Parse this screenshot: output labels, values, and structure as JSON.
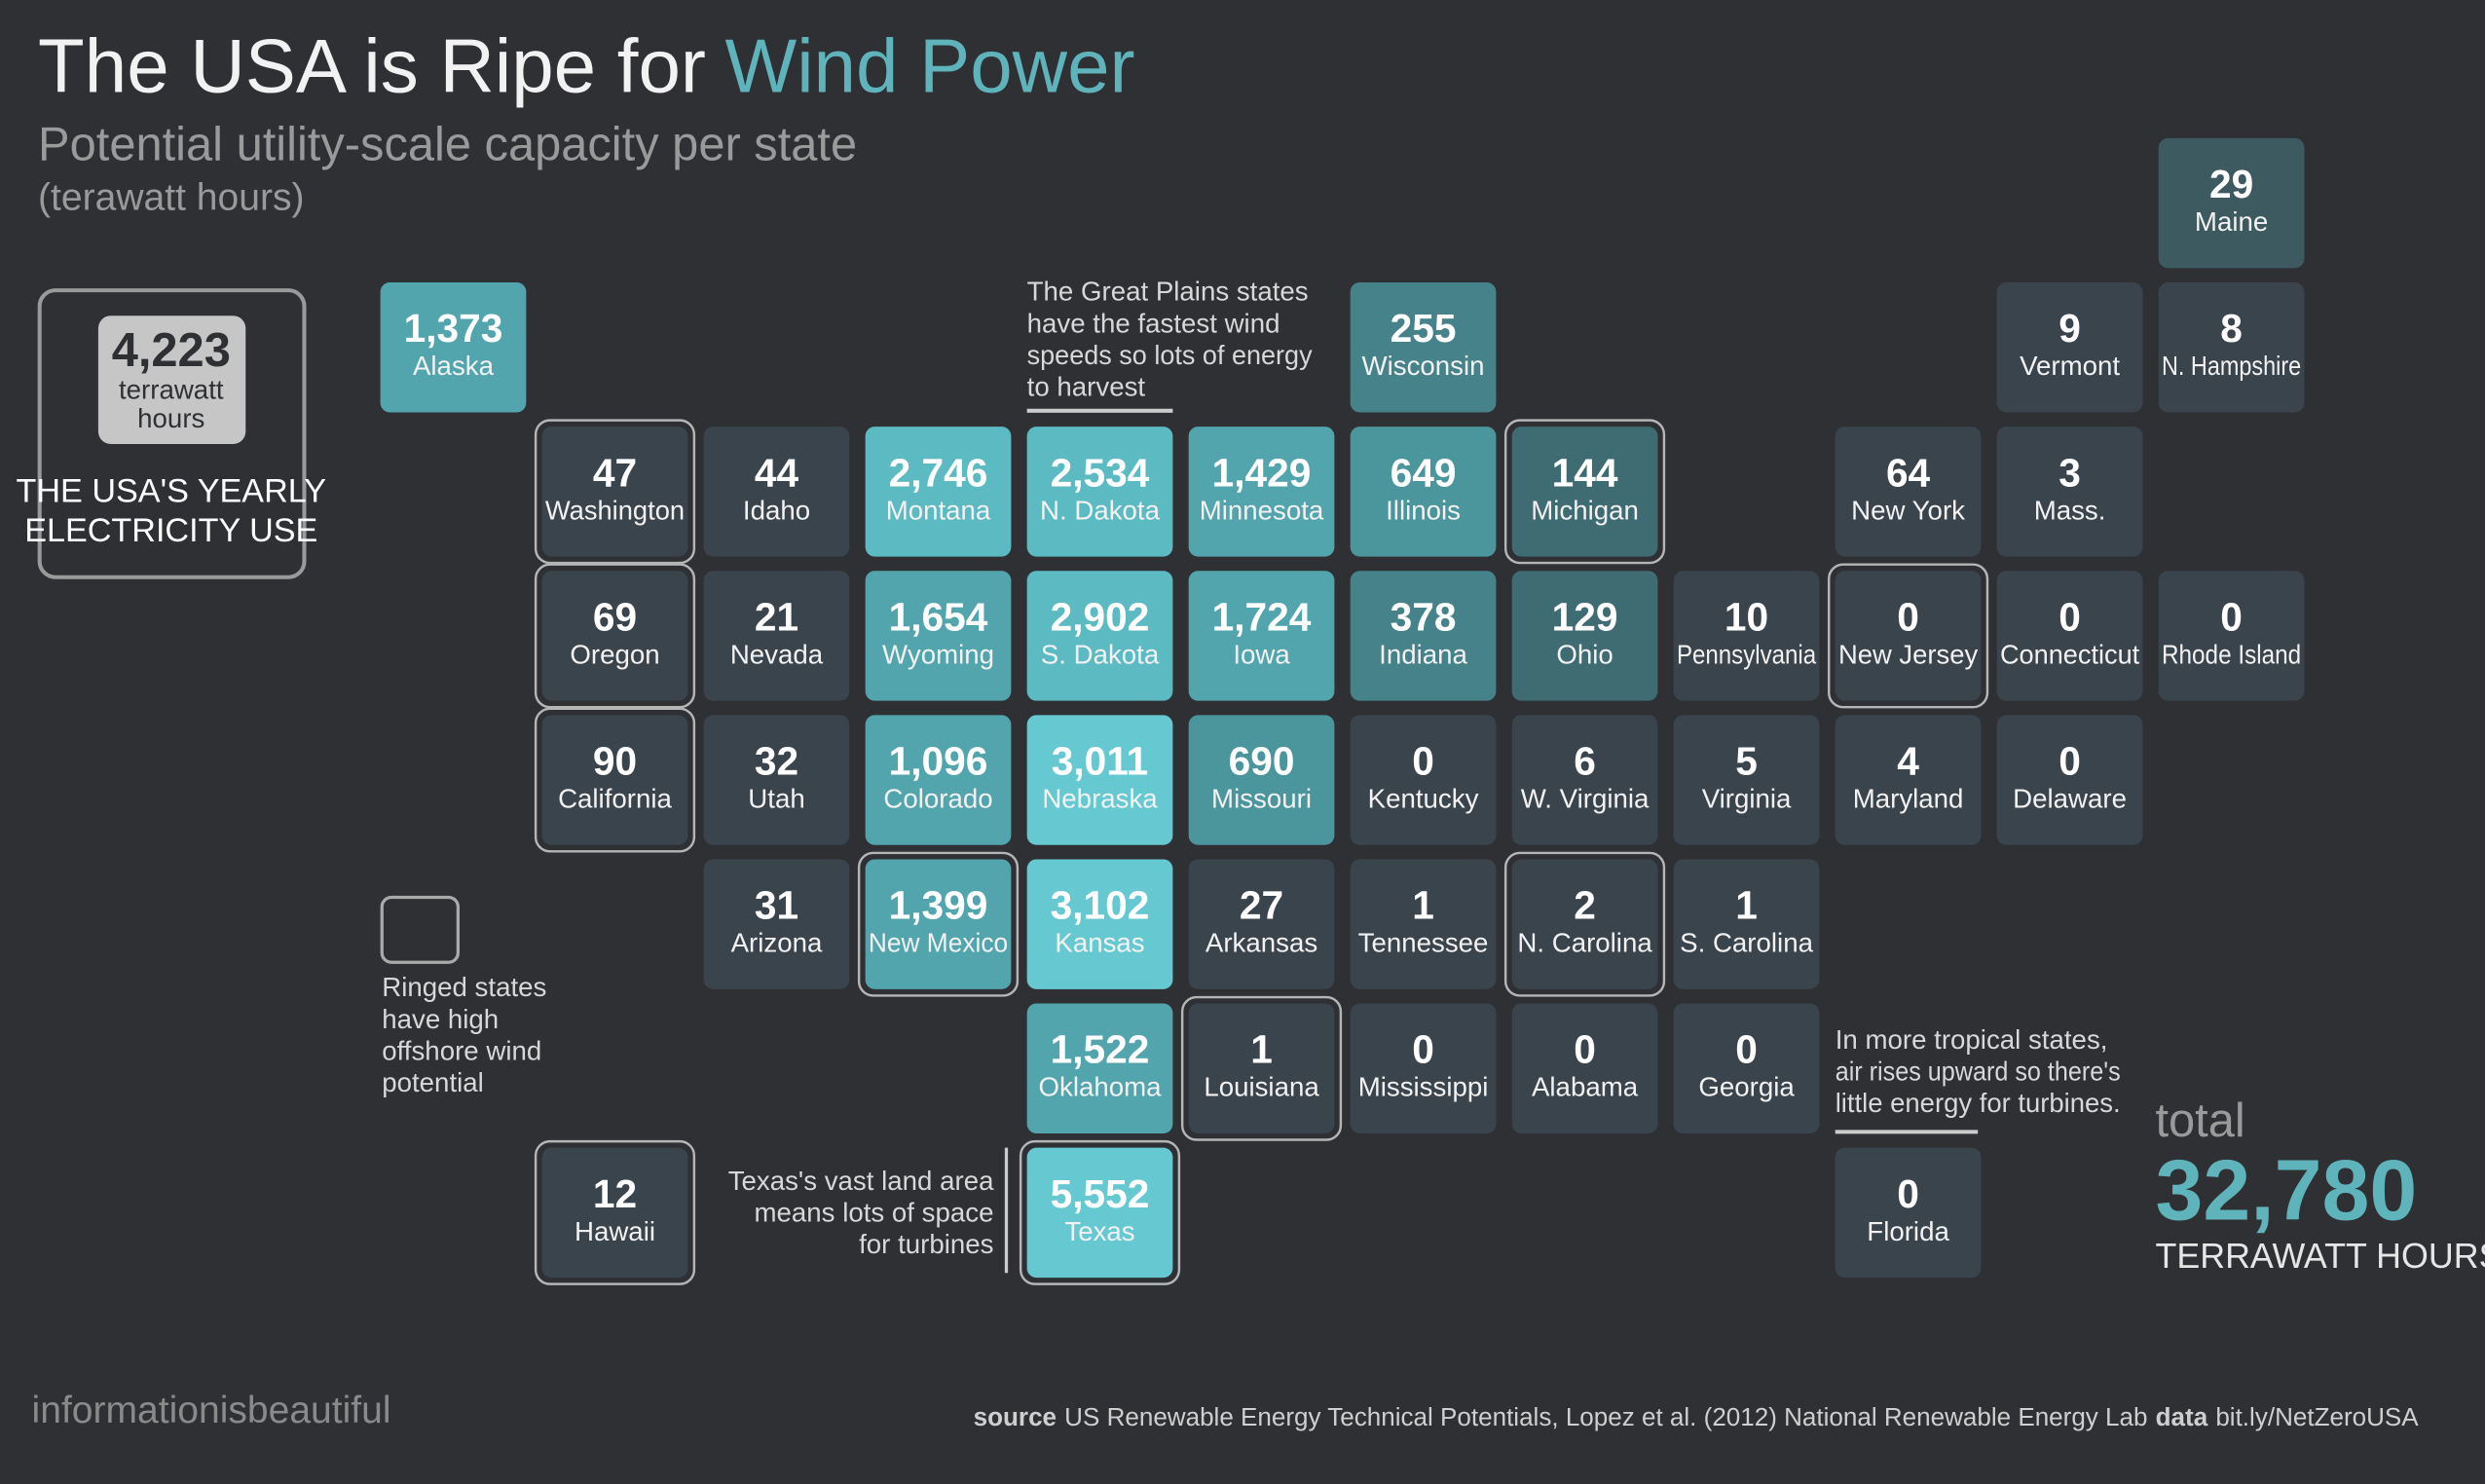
{
  "chart_data": {
    "type": "tilemap",
    "title": [
      "The USA is Ripe for",
      "Wind Power"
    ],
    "subtitle": "Potential utility-scale capacity per state",
    "unit": "(terawatt hours)",
    "categories": [
      "Maine",
      "Alaska",
      "Wisconsin",
      "Vermont",
      "N. Hampshire",
      "Washington",
      "Idaho",
      "Montana",
      "N. Dakota",
      "Minnesota",
      "Illinois",
      "Michigan",
      "New York",
      "Mass.",
      "Oregon",
      "Nevada",
      "Wyoming",
      "S. Dakota",
      "Iowa",
      "Indiana",
      "Ohio",
      "Pennsylvania",
      "New Jersey",
      "Connecticut",
      "Rhode Island",
      "California",
      "Utah",
      "Colorado",
      "Nebraska",
      "Missouri",
      "Kentucky",
      "W. Virginia",
      "Virginia",
      "Maryland",
      "Delaware",
      "Arizona",
      "New Mexico",
      "Kansas",
      "Arkansas",
      "Tennessee",
      "N. Carolina",
      "S. Carolina",
      "Oklahoma",
      "Louisiana",
      "Mississippi",
      "Alabama",
      "Georgia",
      "Hawaii",
      "Texas",
      "Florida"
    ],
    "values": [
      29,
      1373,
      255,
      9,
      8,
      47,
      44,
      2746,
      2534,
      1429,
      649,
      144,
      64,
      3,
      69,
      21,
      1654,
      2902,
      1724,
      378,
      129,
      10,
      0,
      0,
      0,
      90,
      32,
      1096,
      3011,
      690,
      0,
      6,
      5,
      4,
      0,
      31,
      1399,
      3102,
      27,
      1,
      2,
      1,
      1522,
      1,
      0,
      0,
      0,
      12,
      5552,
      0
    ],
    "value_labels": [
      "29",
      "1,373",
      "255",
      "9",
      "8",
      "47",
      "44",
      "2,746",
      "2,534",
      "1,429",
      "649",
      "144",
      "64",
      "3",
      "69",
      "21",
      "1,654",
      "2,902",
      "1,724",
      "378",
      "129",
      "10",
      "0",
      "0",
      "0",
      "90",
      "32",
      "1,096",
      "3,011",
      "690",
      "0",
      "6",
      "5",
      "4",
      "0",
      "31",
      "1,399",
      "3,102",
      "27",
      "1",
      "2",
      "1",
      "1,522",
      "1",
      "0",
      "0",
      "0",
      "12",
      "5,552",
      "0"
    ],
    "colors": [
      "#3d5a61",
      "#52a5ad",
      "#45828a",
      "#3a444c",
      "#3a444c",
      "#3a444c",
      "#3a444c",
      "#5cbac3",
      "#5cbac3",
      "#52a5ad",
      "#4b959d",
      "#3f6b73",
      "#3a444c",
      "#3a444c",
      "#3a444c",
      "#3a444c",
      "#52a5ad",
      "#5cbac3",
      "#52a5ad",
      "#45828a",
      "#3f6b73",
      "#3a444c",
      "#3a444c",
      "#3a444c",
      "#3a444c",
      "#3a444c",
      "#3a444c",
      "#52a5ad",
      "#66c8d1",
      "#4b959d",
      "#3a444c",
      "#3a444c",
      "#3a444c",
      "#3a444c",
      "#3a444c",
      "#3a444c",
      "#52a5ad",
      "#66c8d1",
      "#3a444c",
      "#3a444c",
      "#3a444c",
      "#3a444c",
      "#52a5ad",
      "#3a444c",
      "#3a444c",
      "#3a444c",
      "#3a444c",
      "#3a444c",
      "#66c8d1",
      "#3a444c"
    ],
    "ringed": [
      false,
      false,
      false,
      false,
      false,
      true,
      false,
      false,
      false,
      false,
      false,
      true,
      false,
      false,
      true,
      false,
      false,
      false,
      false,
      false,
      false,
      false,
      true,
      false,
      false,
      true,
      false,
      false,
      false,
      false,
      false,
      false,
      false,
      false,
      false,
      false,
      true,
      false,
      false,
      false,
      true,
      false,
      false,
      true,
      false,
      false,
      false,
      true,
      true,
      false
    ],
    "reference": {
      "value": 4223,
      "label": "4,223",
      "unit": [
        "terrawatt",
        "hours"
      ],
      "caption": [
        "THE USA'S YEARLY",
        "ELECTRICITY USE"
      ]
    },
    "ring_legend": [
      "Ringed states",
      "have high",
      "offshore wind",
      "potential"
    ],
    "annotations": {
      "plains": [
        "The Great Plains states",
        "have the fastest wind",
        "speeds so lots of energy",
        "to harvest"
      ],
      "tropical": [
        "In more tropical states,",
        "air rises upward so there's",
        "little energy for turbines."
      ],
      "texas": [
        "Texas's vast land area",
        "means lots of space",
        "for turbines"
      ]
    },
    "total": {
      "caption": "total",
      "value": 32780,
      "label": "32,780",
      "unit": "TERRAWATT HOURS"
    },
    "brand": "informationisbeautiful",
    "source_label": "source",
    "source_text": "US Renewable Energy Technical Potentials, Lopez et al. (2012) National Renewable Energy Lab",
    "data_label": "data",
    "data_text": "bit.ly/NetZeroUSA"
  }
}
